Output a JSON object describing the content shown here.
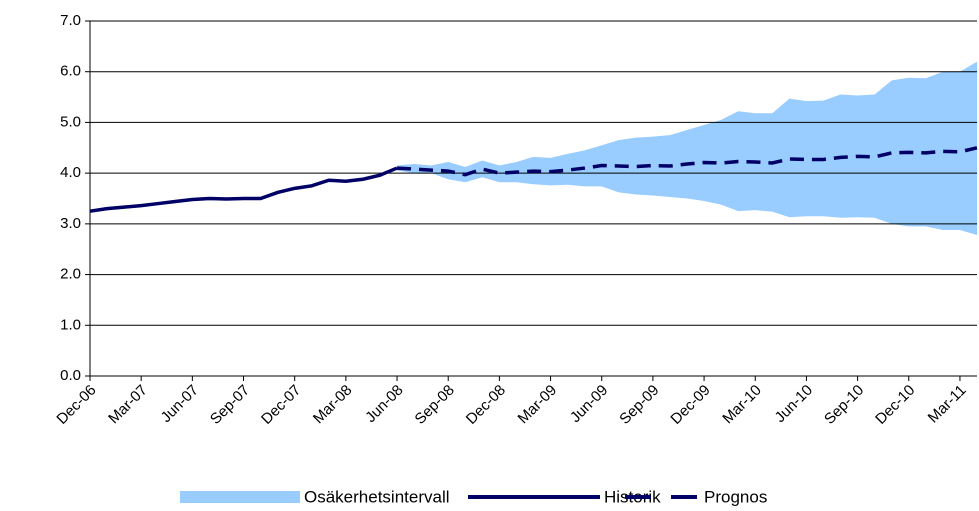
{
  "chart_data": {
    "type": "line",
    "categories": [
      "Dec-06",
      null,
      null,
      "Mar-07",
      null,
      null,
      "Jun-07",
      null,
      null,
      "Sep-07",
      null,
      null,
      "Dec-07",
      null,
      null,
      "Mar-08",
      null,
      null,
      "Jun-08",
      null,
      null,
      "Sep-08",
      null,
      null,
      "Dec-08",
      null,
      null,
      "Mar-09",
      null,
      null,
      "Jun-09",
      null,
      null,
      "Sep-09",
      null,
      null,
      "Dec-09",
      null,
      null,
      "Mar-10",
      null,
      null,
      "Jun-10",
      null,
      null,
      "Sep-10",
      null,
      null,
      "Dec-10",
      null,
      null,
      "Mar-11",
      null
    ],
    "series": [
      {
        "name": "Osäkerhetsintervall",
        "kind": "band",
        "color": "#99ccff",
        "values": [
          null,
          null,
          null,
          null,
          null,
          null,
          null,
          null,
          null,
          null,
          null,
          null,
          null,
          null,
          null,
          null,
          null,
          null,
          4.15,
          4.18,
          4.15,
          4.22,
          4.12,
          4.25,
          4.15,
          4.22,
          4.32,
          4.3,
          4.38,
          4.45,
          4.55,
          4.65,
          4.7,
          4.72,
          4.75,
          4.85,
          4.95,
          5.05,
          5.22,
          5.18,
          5.18,
          5.47,
          5.42,
          5.43,
          5.55,
          5.53,
          5.55,
          5.83,
          5.88,
          5.87,
          6.0,
          6.0,
          6.2
        ],
        "lower": [
          null,
          null,
          null,
          null,
          null,
          null,
          null,
          null,
          null,
          null,
          null,
          null,
          null,
          null,
          null,
          null,
          null,
          null,
          4.05,
          4.0,
          4.0,
          3.88,
          3.82,
          3.92,
          3.82,
          3.82,
          3.78,
          3.76,
          3.77,
          3.74,
          3.74,
          3.62,
          3.58,
          3.56,
          3.53,
          3.5,
          3.45,
          3.38,
          3.25,
          3.27,
          3.24,
          3.13,
          3.15,
          3.15,
          3.12,
          3.13,
          3.12,
          3.0,
          2.95,
          2.95,
          2.88,
          2.88,
          2.78
        ]
      },
      {
        "name": "Historik",
        "kind": "solid",
        "color": "#000066",
        "values": [
          3.25,
          3.3,
          3.33,
          3.36,
          3.4,
          3.44,
          3.48,
          3.5,
          3.49,
          3.5,
          3.5,
          3.62,
          3.7,
          3.75,
          3.86,
          3.84,
          3.88,
          3.96,
          4.1,
          null,
          null,
          null,
          null,
          null,
          null,
          null,
          null,
          null,
          null,
          null,
          null,
          null,
          null,
          null,
          null,
          null,
          null,
          null,
          null,
          null,
          null,
          null,
          null,
          null,
          null,
          null,
          null,
          null,
          null,
          null,
          null,
          null,
          null
        ]
      },
      {
        "name": "Prognos",
        "kind": "dashed",
        "color": "#000066",
        "values": [
          null,
          null,
          null,
          null,
          null,
          null,
          null,
          null,
          null,
          null,
          null,
          null,
          null,
          null,
          null,
          null,
          null,
          null,
          4.1,
          4.08,
          4.06,
          4.04,
          3.97,
          4.08,
          4.0,
          4.02,
          4.04,
          4.03,
          4.06,
          4.1,
          4.15,
          4.14,
          4.13,
          4.15,
          4.14,
          4.18,
          4.21,
          4.2,
          4.23,
          4.22,
          4.2,
          4.28,
          4.27,
          4.27,
          4.31,
          4.33,
          4.32,
          4.4,
          4.41,
          4.4,
          4.43,
          4.42,
          4.5
        ]
      }
    ],
    "ylim": [
      0,
      7
    ],
    "yticks": [
      {
        "value": 0,
        "label": "0.0"
      },
      {
        "value": 1,
        "label": "1.0"
      },
      {
        "value": 2,
        "label": "2.0"
      },
      {
        "value": 3,
        "label": "3.0"
      },
      {
        "value": 4,
        "label": "4.0"
      },
      {
        "value": 5,
        "label": "5.0"
      },
      {
        "value": 6,
        "label": "6.0"
      },
      {
        "value": 7,
        "label": "7.0"
      }
    ],
    "grid": true,
    "legend": "bottom"
  }
}
